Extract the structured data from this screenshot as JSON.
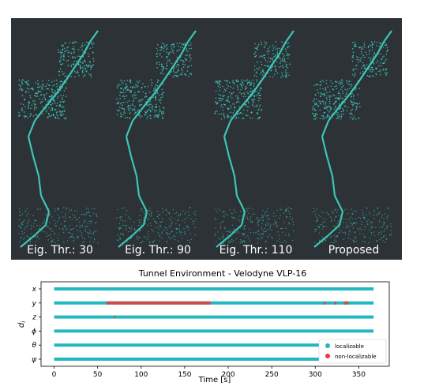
{
  "figure": {
    "panels": [
      {
        "caption": "Eig. Thr.: 30"
      },
      {
        "caption": "Eig. Thr.: 90"
      },
      {
        "caption": "Eig. Thr.: 110"
      },
      {
        "caption": "Proposed"
      }
    ]
  },
  "colors": {
    "background": "#2c3236",
    "pointcloud": "#3fd6c6",
    "localizable": "#22b8c2",
    "non_localizable": "#e53b3b"
  },
  "chart_data": {
    "type": "scatter",
    "title": "Tunnel Environment - Velodyne VLP-16",
    "xlabel": "Time [s]",
    "ylabel": "d_i",
    "xlim": [
      -15,
      385
    ],
    "xticks": [
      0,
      50,
      100,
      150,
      200,
      250,
      300,
      350
    ],
    "categories": [
      "x",
      "y",
      "z",
      "φ",
      "θ",
      "ψ"
    ],
    "category_labels": [
      "x",
      "y",
      "z",
      "ϕ",
      "θ",
      "ψ"
    ],
    "duration_s": 367,
    "series": [
      {
        "name": "localizable",
        "color": "#22b8c2",
        "segments": {
          "x": [
            [
              0,
              367
            ]
          ],
          "y": [
            [
              0,
              367
            ]
          ],
          "z": [
            [
              0,
              367
            ]
          ],
          "φ": [
            [
              0,
              367
            ]
          ],
          "θ": [
            [
              0,
              367
            ]
          ],
          "ψ": [
            [
              0,
              367
            ]
          ]
        }
      },
      {
        "name": "non-localizable",
        "color": "#e53b3b",
        "segments": {
          "y": [
            [
              60,
              180
            ],
            [
              310,
              312
            ],
            [
              322,
              324
            ],
            [
              333,
              338
            ]
          ],
          "z": [
            [
              69,
              70
            ]
          ]
        }
      }
    ],
    "legend": {
      "position": "bottom-right"
    },
    "grid": false
  }
}
